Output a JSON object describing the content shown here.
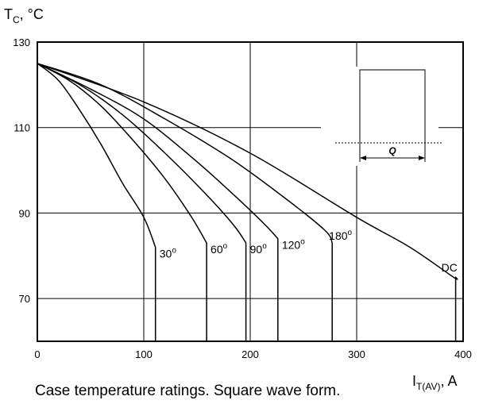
{
  "chart_data": {
    "type": "line",
    "title": "",
    "caption": "Case temperature ratings. Square wave form.",
    "ylabel": {
      "main": "T",
      "sub": "C",
      "rest": ", °C"
    },
    "xlabel": {
      "main": "I",
      "sub": "T(AV)",
      "rest": ", A"
    },
    "xlim": [
      0,
      400
    ],
    "ylim": [
      60,
      130
    ],
    "x_ticks": [
      "0",
      "100",
      "200",
      "300",
      "400"
    ],
    "y_ticks": [
      "130",
      "110",
      "90",
      "70"
    ],
    "grid": true,
    "series": [
      {
        "name": "30",
        "label_degree": true,
        "points": [
          [
            0,
            125
          ],
          [
            20,
            121
          ],
          [
            40,
            114
          ],
          [
            60,
            106
          ],
          [
            80,
            97
          ],
          [
            100,
            89
          ],
          [
            111,
            82
          ],
          [
            111,
            60
          ]
        ]
      },
      {
        "name": "60",
        "label_degree": true,
        "points": [
          [
            0,
            125
          ],
          [
            30,
            121
          ],
          [
            60,
            115
          ],
          [
            90,
            107
          ],
          [
            120,
            98
          ],
          [
            145,
            89
          ],
          [
            159,
            83
          ],
          [
            159,
            60
          ]
        ]
      },
      {
        "name": "90",
        "label_degree": true,
        "points": [
          [
            0,
            125
          ],
          [
            40,
            120
          ],
          [
            80,
            113
          ],
          [
            120,
            104
          ],
          [
            160,
            94
          ],
          [
            185,
            87
          ],
          [
            196,
            83
          ],
          [
            196,
            60
          ]
        ]
      },
      {
        "name": "120",
        "label_degree": true,
        "points": [
          [
            0,
            125
          ],
          [
            50,
            119
          ],
          [
            100,
            112
          ],
          [
            150,
            102
          ],
          [
            190,
            93
          ],
          [
            215,
            87
          ],
          [
            226,
            84
          ],
          [
            226,
            60
          ]
        ]
      },
      {
        "name": "180",
        "label_degree": true,
        "points": [
          [
            0,
            125
          ],
          [
            60,
            120
          ],
          [
            120,
            112
          ],
          [
            180,
            103
          ],
          [
            230,
            94
          ],
          [
            270,
            86
          ],
          [
            277,
            83
          ],
          [
            277,
            60
          ]
        ]
      },
      {
        "name": "DC",
        "label_degree": false,
        "points": [
          [
            0,
            125
          ],
          [
            100,
            116
          ],
          [
            200,
            104
          ],
          [
            300,
            89
          ],
          [
            350,
            82
          ],
          [
            391,
            75
          ],
          [
            393,
            75
          ],
          [
            393,
            60
          ]
        ]
      }
    ],
    "inset": {
      "label": "Q"
    }
  }
}
